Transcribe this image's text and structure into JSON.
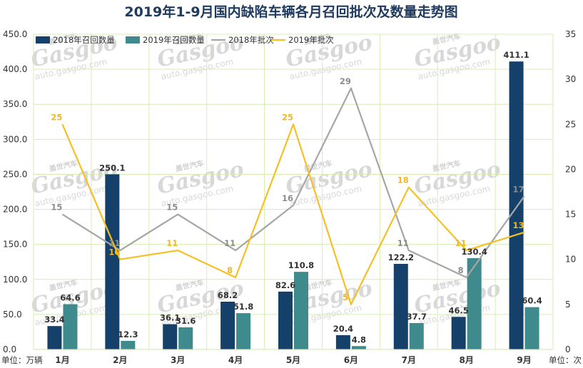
{
  "chart_data": {
    "type": "bar",
    "title": "2019年1-9月国内缺陷车辆各月召回批次及数量走势图",
    "categories": [
      "1月",
      "2月",
      "3月",
      "4月",
      "5月",
      "6月",
      "7月",
      "8月",
      "9月"
    ],
    "series": [
      {
        "name": "2018年召回数量",
        "type": "bar",
        "axis": "left",
        "color": "#14406a",
        "values": [
          33.4,
          250.1,
          36.1,
          68.2,
          82.6,
          20.4,
          122.2,
          46.5,
          411.1
        ]
      },
      {
        "name": "2019年召回数量",
        "type": "bar",
        "axis": "left",
        "color": "#3e8a8c",
        "values": [
          64.6,
          12.3,
          31.6,
          51.8,
          110.8,
          4.8,
          37.7,
          130.4,
          60.4
        ]
      },
      {
        "name": "2018年批次",
        "type": "line",
        "axis": "right",
        "color": "#a6a6a6",
        "values": [
          15,
          11,
          15,
          11,
          16,
          29,
          11,
          8,
          17
        ]
      },
      {
        "name": "2019年批次",
        "type": "line",
        "axis": "right",
        "color": "#f5c024",
        "values": [
          25,
          10,
          11,
          8,
          25,
          5,
          18,
          11,
          13
        ]
      }
    ],
    "y_left": {
      "unit": "单位：万辆",
      "min": 0,
      "max": 450,
      "step": 50,
      "ticks": [
        "0.0",
        "50.0",
        "100.0",
        "150.0",
        "200.0",
        "250.0",
        "300.0",
        "350.0",
        "400.0",
        "450.0"
      ]
    },
    "y_right": {
      "unit": "单位：次",
      "min": 0,
      "max": 35,
      "step": 5,
      "ticks": [
        "0",
        "5",
        "10",
        "15",
        "20",
        "25",
        "30",
        "35"
      ]
    },
    "grid": true,
    "legend_position": "top-left"
  },
  "watermark": {
    "brand": "Gasgoo",
    "cn": "盖世汽车",
    "url": "auto.gasgoo.com"
  }
}
